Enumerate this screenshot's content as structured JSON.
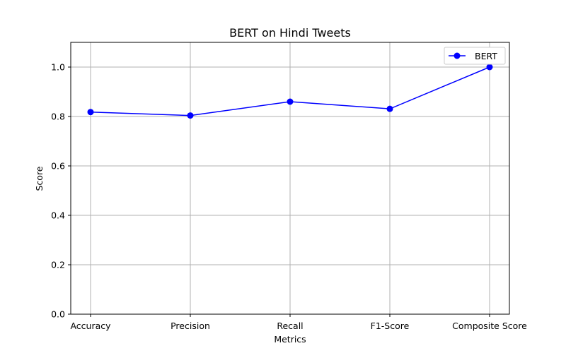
{
  "chart_data": {
    "type": "line",
    "title": "BERT on Hindi Tweets",
    "xlabel": "Metrics",
    "ylabel": "Score",
    "categories": [
      "Accuracy",
      "Precision",
      "Recall",
      "F1-Score",
      "Composite Score"
    ],
    "series": [
      {
        "name": "BERT",
        "values": [
          0.818,
          0.804,
          0.86,
          0.831,
          1.0
        ],
        "color": "#0000ff",
        "marker": "circle"
      }
    ],
    "ylim": [
      0,
      1.1
    ],
    "yticks": [
      0.0,
      0.2,
      0.4,
      0.6,
      0.8,
      1.0
    ],
    "ytick_labels": [
      "0.0",
      "0.2",
      "0.4",
      "0.6",
      "0.8",
      "1.0"
    ],
    "grid": true,
    "legend_position": "top-right"
  }
}
